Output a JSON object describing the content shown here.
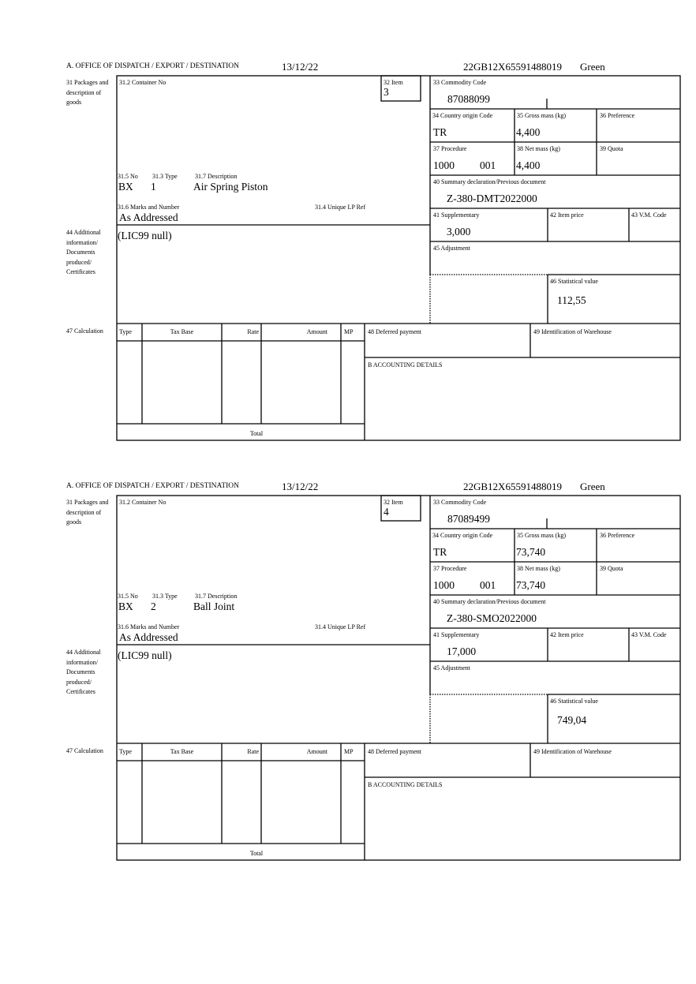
{
  "labels": {
    "office": "A. OFFICE OF DISPATCH / EXPORT / DESTINATION",
    "packages": "31 Packages and description of goods",
    "container_no": "31.2 Container No",
    "item": "32 Item",
    "commodity_code": "33 Commodity Code",
    "country_origin": "34 Country origin Code",
    "gross_mass": "35 Gross mass (kg)",
    "preference": "36 Preference",
    "procedure": "37 Procedure",
    "net_mass": "38 Net mass (kg)",
    "quota": "39 Quota",
    "summary_declaration": "40 Summary declaration/Previous document",
    "supplementary": "41 Supplementary",
    "item_price": "42 Item price",
    "vm_code": "43 V.M. Code",
    "adjustment": "45 Adjustment",
    "statistical_value": "46 Statistical value",
    "pkg_no": "31.5 No",
    "pkg_type": "31.3 Type",
    "pkg_description": "31.7 Description",
    "marks": "31.6 Marks and Number",
    "unique_lp_ref": "31.4 Unique LP Ref",
    "additional_info": "44 Additional information/ Documents produced/ Certificates",
    "calculation": "47 Calculation",
    "col_type": "Type",
    "col_tax_base": "Tax Base",
    "col_rate": "Rate",
    "col_amount": "Amount",
    "col_mp": "MP",
    "deferred_payment": "48 Deferred payment",
    "warehouse": "49 Identification of Warehouse",
    "accounting": "B ACCOUNTING DETAILS",
    "total": "Total"
  },
  "items": [
    {
      "date": "13/12/22",
      "reference": "22GB12X65591488019",
      "route": "Green",
      "item_no": "3",
      "commodity_code": "87088099",
      "country_origin": "TR",
      "gross_mass": "4,400",
      "procedure": "1000",
      "procedure_extra": "001",
      "net_mass": "4,400",
      "summary_declaration": "Z-380-DMT2022000",
      "supplementary": "3,000",
      "statistical_value": "112,55",
      "pkg_no": "BX",
      "pkg_type": "1",
      "pkg_description": "Air Spring Piston",
      "marks": "As Addressed",
      "additional_info": "(LIC99 null)"
    },
    {
      "date": "13/12/22",
      "reference": "22GB12X65591488019",
      "route": "Green",
      "item_no": "4",
      "commodity_code": "87089499",
      "country_origin": "TR",
      "gross_mass": "73,740",
      "procedure": "1000",
      "procedure_extra": "001",
      "net_mass": "73,740",
      "summary_declaration": "Z-380-SMO2022000",
      "supplementary": "17,000",
      "statistical_value": "749,04",
      "pkg_no": "BX",
      "pkg_type": "2",
      "pkg_description": "Ball Joint",
      "marks": "As Addressed",
      "additional_info": "(LIC99 null)"
    }
  ]
}
